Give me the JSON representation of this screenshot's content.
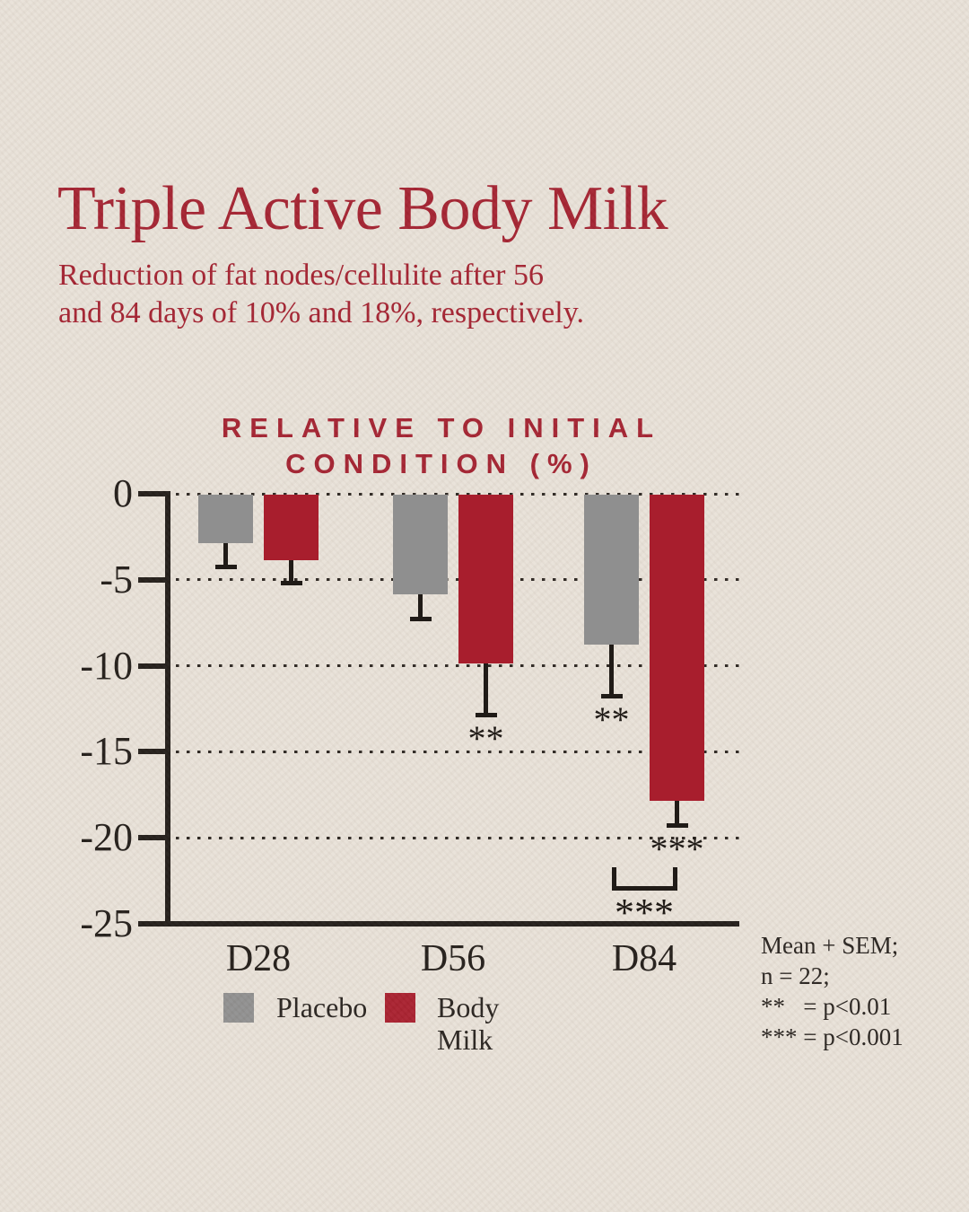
{
  "page": {
    "background_color": "#e8e1d8"
  },
  "header": {
    "title": "Triple Active Body Milk",
    "subtitle_lines": [
      "Reduction of fat nodes/cellulite after 56",
      "and 84 days of 10% and 18%, respectively."
    ],
    "accent_color": "#a3202f"
  },
  "chart_data": {
    "type": "bar",
    "title": "RELATIVE TO INITIAL CONDITION (%)",
    "title_lines": [
      "RELATIVE TO INITIAL",
      "CONDITION (%)"
    ],
    "categories": [
      "D28",
      "D56",
      "D84"
    ],
    "series": [
      {
        "name": "Placebo",
        "color": "#8f8f8f",
        "values": [
          -2.8,
          -5.8,
          -8.7
        ],
        "sem": [
          1.5,
          1.5,
          3.1
        ]
      },
      {
        "name": "Body Milk",
        "color": "#a81e2d",
        "values": [
          -3.8,
          -9.8,
          -17.8
        ],
        "sem": [
          1.4,
          3.1,
          1.5
        ]
      }
    ],
    "ylabel": "",
    "xlabel": "",
    "ylim": [
      -25,
      0
    ],
    "yticks": [
      0,
      -5,
      -10,
      -15,
      -20,
      -25
    ],
    "grid": "horizontal-dotted",
    "error_bars": "Mean + SEM, downward caps",
    "significance": [
      {
        "type": "stars",
        "text": "**",
        "series": 1,
        "category": 1
      },
      {
        "type": "stars",
        "text": "**",
        "series": 0,
        "category": 2
      },
      {
        "type": "stars",
        "text": "***",
        "series": 1,
        "category": 2
      },
      {
        "type": "bracket",
        "text": "***",
        "category": 2,
        "between_series": [
          0,
          1
        ]
      }
    ],
    "legend_position": "bottom"
  },
  "legend": {
    "items": [
      {
        "label": "Placebo",
        "color": "#8f8f8f"
      },
      {
        "label": "Body Milk",
        "color": "#a81e2d"
      }
    ]
  },
  "footnote": {
    "lines": [
      "Mean + SEM;",
      "n = 22;",
      "**   = p<0.01",
      "*** = p<0.001"
    ]
  }
}
